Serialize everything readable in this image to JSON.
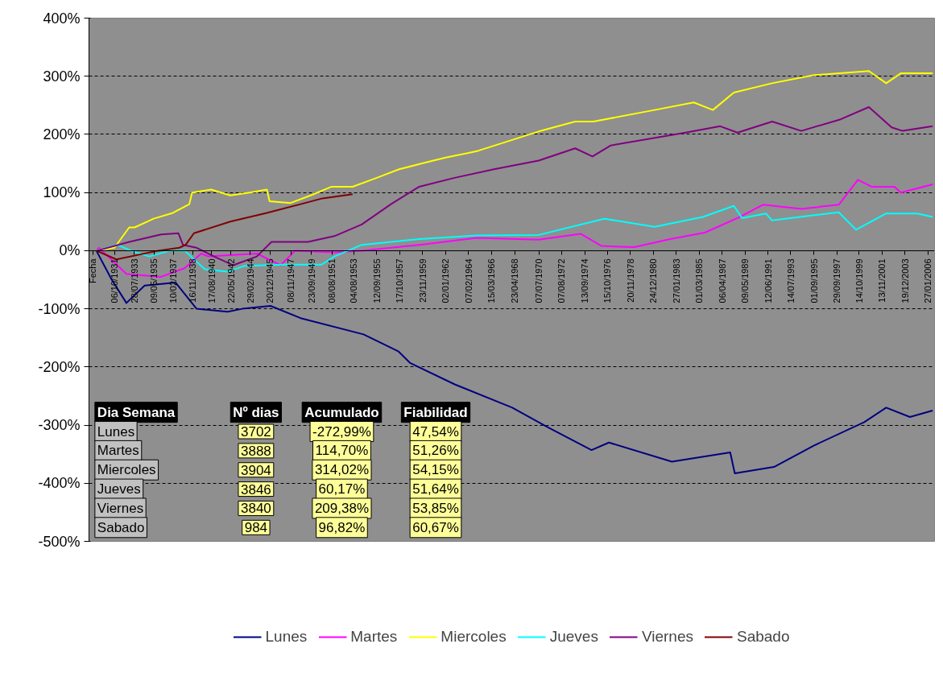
{
  "chart_data": {
    "type": "line",
    "xlim": [
      "1929-06-01",
      "2006-09-01"
    ],
    "xticks": [
      {
        "value": "1929-10-01",
        "label": "Fecha"
      },
      {
        "value": "1931-10-06",
        "label": "06/10/1931"
      },
      {
        "value": "1933-07-28",
        "label": "28/07/1933"
      },
      {
        "value": "1935-05-09",
        "label": "09/05/1935"
      },
      {
        "value": "1937-02-10",
        "label": "10/02/1937"
      },
      {
        "value": "1938-11-16",
        "label": "16/11/1938"
      },
      {
        "value": "1940-08-17",
        "label": "17/08/1940"
      },
      {
        "value": "1942-05-22",
        "label": "22/05/1942"
      },
      {
        "value": "1944-02-29",
        "label": "29/02/1944"
      },
      {
        "value": "1945-12-20",
        "label": "20/12/1945"
      },
      {
        "value": "1947-11-08",
        "label": "08/11/1947"
      },
      {
        "value": "1949-09-23",
        "label": "23/09/1949"
      },
      {
        "value": "1951-08-08",
        "label": "08/08/1951"
      },
      {
        "value": "1953-08-04",
        "label": "04/08/1953"
      },
      {
        "value": "1955-09-12",
        "label": "12/09/1955"
      },
      {
        "value": "1957-10-17",
        "label": "17/10/1957"
      },
      {
        "value": "1959-11-23",
        "label": "23/11/1959"
      },
      {
        "value": "1962-01-02",
        "label": "02/01/1962"
      },
      {
        "value": "1964-02-07",
        "label": "07/02/1964"
      },
      {
        "value": "1966-03-15",
        "label": "15/03/1966"
      },
      {
        "value": "1968-04-23",
        "label": "23/04/1968"
      },
      {
        "value": "1970-07-07",
        "label": "07/07/1970"
      },
      {
        "value": "1972-08-07",
        "label": "07/08/1972"
      },
      {
        "value": "1974-09-13",
        "label": "13/09/1974"
      },
      {
        "value": "1976-10-15",
        "label": "15/10/1976"
      },
      {
        "value": "1978-11-20",
        "label": "20/11/1978"
      },
      {
        "value": "1980-12-24",
        "label": "24/12/1980"
      },
      {
        "value": "1983-01-27",
        "label": "27/01/1983"
      },
      {
        "value": "1985-03-01",
        "label": "01/03/1985"
      },
      {
        "value": "1987-04-06",
        "label": "06/04/1987"
      },
      {
        "value": "1989-05-09",
        "label": "09/05/1989"
      },
      {
        "value": "1991-06-12",
        "label": "12/06/1991"
      },
      {
        "value": "1993-07-14",
        "label": "14/07/1993"
      },
      {
        "value": "1995-09-01",
        "label": "01/09/1995"
      },
      {
        "value": "1997-09-29",
        "label": "29/09/1997"
      },
      {
        "value": "1999-10-14",
        "label": "14/10/1999"
      },
      {
        "value": "2001-11-13",
        "label": "13/11/2001"
      },
      {
        "value": "2003-12-19",
        "label": "19/12/2003"
      },
      {
        "value": "2006-01-27",
        "label": "27/01/2006"
      }
    ],
    "ylim": [
      -500,
      400
    ],
    "yticks": [
      {
        "value": -500,
        "label": "-500%"
      },
      {
        "value": -400,
        "label": "-400%"
      },
      {
        "value": -300,
        "label": "-300%"
      },
      {
        "value": -200,
        "label": "-200%"
      },
      {
        "value": -100,
        "label": "-100%"
      },
      {
        "value": 0,
        "label": "0%"
      },
      {
        "value": 100,
        "label": "100%"
      },
      {
        "value": 200,
        "label": "200%"
      },
      {
        "value": 300,
        "label": "300%"
      },
      {
        "value": 400,
        "label": "400%"
      }
    ],
    "grid": "y",
    "legend": "bottom",
    "line_style": "solid",
    "marker": "none",
    "series": [
      {
        "name": "Lunes",
        "color": "#000080",
        "x": [
          "1930-02",
          "1931-07",
          "1932-11",
          "1934-07",
          "1937-05",
          "1939-04",
          "1942-02",
          "1943-06",
          "1946-01",
          "1948-10",
          "1954-07",
          "1957-09",
          "1958-10",
          "1962-11",
          "1968-02",
          "1971-04",
          "1975-05",
          "1976-12",
          "1982-09",
          "1988-01",
          "1988-06",
          "1992-01",
          "1995-09",
          "2000-04",
          "2002-04",
          "2004-06",
          "2006-07"
        ],
        "values": [
          0,
          -50,
          -90,
          -60,
          -55,
          -100,
          -105,
          -100,
          -95,
          -116,
          -144,
          -173,
          -193,
          -230,
          -270,
          -303,
          -343,
          -330,
          -363,
          -347,
          -383,
          -372,
          -335,
          -295,
          -270,
          -286,
          -275
        ]
      },
      {
        "name": "Martes",
        "color": "#ff00ff",
        "x": [
          "1930-02",
          "1930-05",
          "1932-11",
          "1936-01",
          "1938-03",
          "1939-09",
          "1940-05",
          "1944-10",
          "1946-12",
          "1948-04",
          "1951-11",
          "1954-05",
          "1959-08",
          "1964-11",
          "1970-07",
          "1974-05",
          "1976-04",
          "1979-04",
          "1982-07",
          "1985-09",
          "1988-09",
          "1991-01",
          "1994-07",
          "1997-12",
          "1999-09",
          "2000-12",
          "2003-01",
          "2003-08",
          "2006-07"
        ],
        "values": [
          0,
          5,
          -40,
          -45,
          -30,
          -5,
          -10,
          -5,
          -25,
          0,
          -3,
          0,
          10,
          22,
          19,
          29,
          8,
          6,
          20,
          31,
          56,
          79,
          72,
          79,
          122,
          110,
          110,
          100,
          114
        ]
      },
      {
        "name": "Miercoles",
        "color": "#ffff00",
        "x": [
          "1930-02",
          "1931-10",
          "1933-02",
          "1933-08",
          "1935-05",
          "1937-02",
          "1938-08",
          "1938-11",
          "1940-08",
          "1942-05",
          "1944-02",
          "1945-09",
          "1945-12",
          "1947-11",
          "1949-09",
          "1951-08",
          "1953-07",
          "1955-09",
          "1957-10",
          "1959-11",
          "1962-01",
          "1964-02",
          "1965-01",
          "1970-07",
          "1973-11",
          "1975-07",
          "1981-02",
          "1984-09",
          "1986-06",
          "1988-05",
          "1991-11",
          "1995-09",
          "2000-09",
          "2002-04",
          "2003-08",
          "2006-07"
        ],
        "values": [
          0,
          5,
          40,
          40,
          55,
          65,
          80,
          100,
          105,
          95,
          100,
          105,
          85,
          82,
          95,
          110,
          110,
          125,
          140,
          150,
          160,
          168,
          172,
          205,
          222,
          222,
          242,
          255,
          242,
          272,
          288,
          302,
          309,
          288,
          305,
          305
        ]
      },
      {
        "name": "Jueves",
        "color": "#00ffff",
        "x": [
          "1930-02",
          "1932-01",
          "1933-04",
          "1934-12",
          "1936-11",
          "1938-03",
          "1940-01",
          "1942-02",
          "1943-09",
          "1947-03",
          "1950-09",
          "1951-11",
          "1954-05",
          "1959-08",
          "1964-11",
          "1970-07",
          "1976-07",
          "1981-02",
          "1985-07",
          "1988-05",
          "1989-02",
          "1991-04",
          "1991-11",
          "1997-12",
          "1999-07",
          "2002-04",
          "2005-02",
          "2006-07"
        ],
        "values": [
          0,
          10,
          0,
          -10,
          0,
          0,
          -32,
          -36,
          -26,
          -24,
          -24,
          -10,
          10,
          20,
          26,
          27,
          55,
          41,
          58,
          77,
          56,
          64,
          52,
          66,
          36,
          64,
          64,
          58
        ]
      },
      {
        "name": "Viernes",
        "color": "#800080",
        "x": [
          "1930-03",
          "1933-02",
          "1936-01",
          "1937-08",
          "1938-01",
          "1939-04",
          "1940-11",
          "1942-08",
          "1944-10",
          "1946-02",
          "1949-06",
          "1951-11",
          "1954-05",
          "1957-01",
          "1959-08",
          "1962-10",
          "1966-06",
          "1970-07",
          "1973-11",
          "1975-06",
          "1977-02",
          "1983-12",
          "1987-02",
          "1988-09",
          "1991-11",
          "1994-07",
          "1998-02",
          "2000-09",
          "2002-10",
          "2003-10",
          "2006-07"
        ],
        "values": [
          0,
          15,
          28,
          30,
          10,
          5,
          -10,
          -25,
          -10,
          15,
          15,
          25,
          45,
          80,
          110,
          125,
          140,
          155,
          176,
          162,
          181,
          203,
          214,
          203,
          222,
          206,
          226,
          247,
          212,
          206,
          214
        ]
      },
      {
        "name": "Sabado",
        "color": "#800000",
        "x": [
          "1930-02",
          "1931-12",
          "1935-10",
          "1937-09",
          "1938-04",
          "1939-01",
          "1942-05",
          "1945-09",
          "1948-10",
          "1950-10",
          "1953-07"
        ],
        "values": [
          0,
          -15,
          0,
          5,
          10,
          30,
          50,
          65,
          80,
          90,
          97
        ]
      }
    ],
    "annotations": [
      "Dia Semana",
      "Nº dias",
      "Acumulado",
      "Fiabilidad",
      "Lunes",
      "3702",
      "-272,99%",
      "47,54%",
      "Martes",
      "3888",
      "114,70%",
      "51,26%",
      "Miercoles",
      "3904",
      "314,02%",
      "54,15%",
      "Jueves",
      "3846",
      "60,17%",
      "51,64%",
      "Viernes",
      "3840",
      "209,38%",
      "53,85%",
      "Sabado",
      "984",
      "96,82%",
      "60,67%"
    ]
  }
}
